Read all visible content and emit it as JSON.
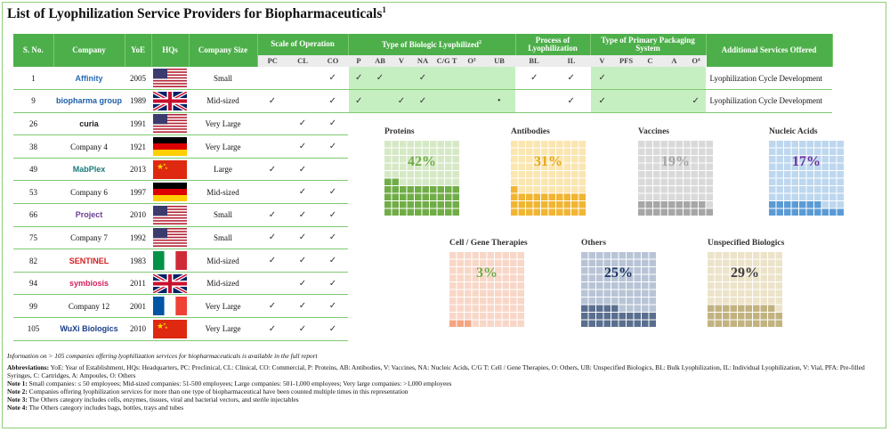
{
  "title": "List of Lyophilization Service Providers for Biopharmaceuticals",
  "title_sup": "1",
  "headers": {
    "sno": "S. No.",
    "company": "Company",
    "yoe": "YoE",
    "hqs": "HQs",
    "size": "Company Size",
    "scale": "Scale of Operation",
    "biologic": "Type of Biologic Lyophilized",
    "biologic_sup": "2",
    "process": "Process of Lyophilization",
    "packaging": "Type of Primary Packaging System",
    "additional": "Additional Services Offered"
  },
  "subheaders": [
    "PC",
    "CL",
    "CO",
    "P",
    "AB",
    "V",
    "NA",
    "C/G T",
    "O³",
    "UB",
    "BL",
    "IL",
    "V",
    "PFS",
    "C",
    "A",
    "O⁴"
  ],
  "rows": [
    {
      "sno": "1",
      "company": "Affinity",
      "yoe": "2005",
      "flag": "us",
      "size": "Small",
      "checks": [
        "",
        "",
        "✓",
        "✓",
        "✓",
        "",
        "✓",
        "",
        "",
        "",
        "✓",
        "✓",
        "✓",
        "",
        "",
        "",
        ""
      ],
      "additional": "Lyophilization Cycle Development",
      "logo_color": "#2a6db5"
    },
    {
      "sno": "9",
      "company": "biopharma group",
      "yoe": "1989",
      "flag": "uk",
      "size": "Mid-sized",
      "checks": [
        "✓",
        "",
        "✓",
        "✓",
        "",
        "✓",
        "✓",
        "",
        "",
        "•",
        "",
        "✓",
        "✓",
        "",
        "",
        "",
        "✓"
      ],
      "additional": "Lyophilization Cycle Development",
      "logo_color": "#1f5fa8"
    },
    {
      "sno": "26",
      "company": "curia",
      "yoe": "1991",
      "flag": "us",
      "size": "Very Large",
      "checks": [
        "",
        "✓",
        "✓"
      ],
      "additional": "",
      "logo_color": "#222"
    },
    {
      "sno": "38",
      "company": "Company 4",
      "yoe": "1921",
      "flag": "de",
      "size": "Very Large",
      "checks": [
        "",
        "✓",
        "✓"
      ],
      "additional": "",
      "logo_color": ""
    },
    {
      "sno": "49",
      "company": "MabPlex",
      "yoe": "2013",
      "flag": "cn",
      "size": "Large",
      "checks": [
        "✓",
        "✓",
        ""
      ],
      "additional": "",
      "logo_color": "#1a7a7a"
    },
    {
      "sno": "53",
      "company": "Company 6",
      "yoe": "1997",
      "flag": "de",
      "size": "Mid-sized",
      "checks": [
        "",
        "✓",
        "✓"
      ],
      "additional": "",
      "logo_color": ""
    },
    {
      "sno": "66",
      "company": "Project",
      "yoe": "2010",
      "flag": "us",
      "size": "Small",
      "checks": [
        "✓",
        "✓",
        "✓"
      ],
      "additional": "",
      "logo_color": "#6a3d8f"
    },
    {
      "sno": "75",
      "company": "Company 7",
      "yoe": "1992",
      "flag": "us",
      "size": "Small",
      "checks": [
        "✓",
        "✓",
        "✓"
      ],
      "additional": "",
      "logo_color": ""
    },
    {
      "sno": "82",
      "company": "SENTINEL",
      "yoe": "1983",
      "flag": "it",
      "size": "Mid-sized",
      "checks": [
        "✓",
        "✓",
        "✓"
      ],
      "additional": "",
      "logo_color": "#d42020"
    },
    {
      "sno": "94",
      "company": "symbiosis",
      "yoe": "2011",
      "flag": "uk",
      "size": "Mid-sized",
      "checks": [
        "",
        "✓",
        "✓"
      ],
      "additional": "",
      "logo_color": "#d42060"
    },
    {
      "sno": "99",
      "company": "Company 12",
      "yoe": "2001",
      "flag": "fr",
      "size": "Very Large",
      "checks": [
        "✓",
        "✓",
        "✓"
      ],
      "additional": "",
      "logo_color": ""
    },
    {
      "sno": "105",
      "company": "WuXi Biologics",
      "yoe": "2010",
      "flag": "cn",
      "size": "Very Large",
      "checks": [
        "✓",
        "✓",
        "✓"
      ],
      "additional": "",
      "logo_color": "#1a3f8a"
    }
  ],
  "chart_data": {
    "type": "waffle",
    "title": "Type of Biologic Lyophilized",
    "grid": [
      10,
      10
    ],
    "items": [
      {
        "label": "Proteins",
        "value": 42,
        "pct_text": "42%",
        "fill": "#70ad47",
        "empty": "#d6e9c6",
        "text_color": "#70ad47"
      },
      {
        "label": "Antibodies",
        "value": 31,
        "pct_text": "31%",
        "fill": "#f0b532",
        "empty": "#fbe6b0",
        "text_color": "#e6a817"
      },
      {
        "label": "Vaccines",
        "value": 19,
        "pct_text": "19%",
        "fill": "#a6a6a6",
        "empty": "#d9d9d9",
        "text_color": "#a6a6a6"
      },
      {
        "label": "Nucleic Acids",
        "value": 17,
        "pct_text": "17%",
        "fill": "#5b9bd5",
        "empty": "#bdd7ee",
        "text_color": "#7030a0"
      },
      {
        "label": "Cell / Gene Therapies",
        "value": 3,
        "pct_text": "3%",
        "fill": "#f4a582",
        "empty": "#f8d7c8",
        "text_color": "#70ad47"
      },
      {
        "label": "Others",
        "value": 25,
        "pct_text": "25%",
        "fill": "#5a6f8f",
        "empty": "#b8c4d6",
        "text_color": "#1f3864"
      },
      {
        "label": "Unspecified Biologics",
        "value": 29,
        "pct_text": "29%",
        "fill": "#c2b280",
        "empty": "#ece3c9",
        "text_color": "#404040"
      }
    ]
  },
  "footnotes": {
    "info": "Information on > 105 companies offering lyophilization services for biopharmaceuticals is available in the full report",
    "abbrev_label": "Abbreviations:",
    "abbrev_text": "YoE: Year of Establishment, HQs: Headquarters, PC: Preclinical, CL: Clinical, CO: Commercial, P: Proteins, AB: Antibodies, V: Vaccines, NA: Nucleic Acids, C/G T: Cell / Gene Therapies, O: Others, UB: Unspecified Biologics, BL: Bulk Lyophilization, IL: Individual Lyophilization, V: Vial, PFA: Pre-filled Syringes, C: Cartridges, A: Ampoules, O: Others",
    "note1_label": "Note 1:",
    "note1_text": "Small companies: ≤ 50 employees; Mid-sized companies: 51-500 employees; Large companies: 501-1,000 employees; Very large companies: >1,000 employees",
    "note2_label": "Note 2:",
    "note2_text": "Companies offering lyophilization services for more than one type of biopharmaceutical have been counted multiple times in this representation",
    "note3_label": "Note 3:",
    "note3_text": "The Others category includes cells, enzymes, tissues, viral and bacterial vectors, and sterile injectables",
    "note4_label": "Note 4:",
    "note4_text": "The Others category includes bags, bottles, trays and tubes"
  }
}
